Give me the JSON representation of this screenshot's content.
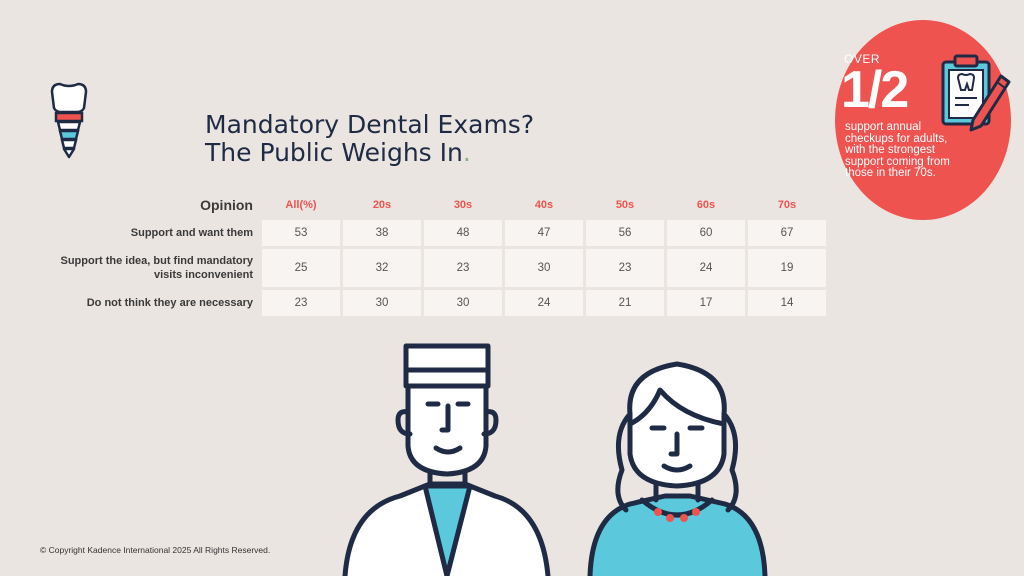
{
  "title": {
    "line1": "Mandatory Dental Exams?",
    "line2": "The Public Weighs In",
    "end": "."
  },
  "badge": {
    "over": "OVER",
    "fraction": "1/2",
    "text": "support annual checkups for adults, with the strongest support coming from those in their 70s."
  },
  "chart_data": {
    "type": "table",
    "columns": [
      "Opinion",
      "All(%)",
      "20s",
      "30s",
      "40s",
      "50s",
      "60s",
      "70s"
    ],
    "rows": [
      {
        "label": "Support and want  them",
        "values": [
          53,
          38,
          48,
          47,
          56,
          60,
          67
        ]
      },
      {
        "label": "Support the idea, but find mandatory visits inconvenient",
        "values": [
          25,
          32,
          23,
          30,
          23,
          24,
          19
        ]
      },
      {
        "label": "Do not think they are necessary",
        "values": [
          23,
          30,
          30,
          24,
          21,
          17,
          14
        ]
      }
    ]
  },
  "footer": {
    "copyright": "© Copyright Kadence International 2025 All Rights Reserved."
  },
  "colors": {
    "accent": "#ef5350",
    "navy": "#1f2a44",
    "teal": "#5bc8dc",
    "background": "#ebe5e1"
  }
}
